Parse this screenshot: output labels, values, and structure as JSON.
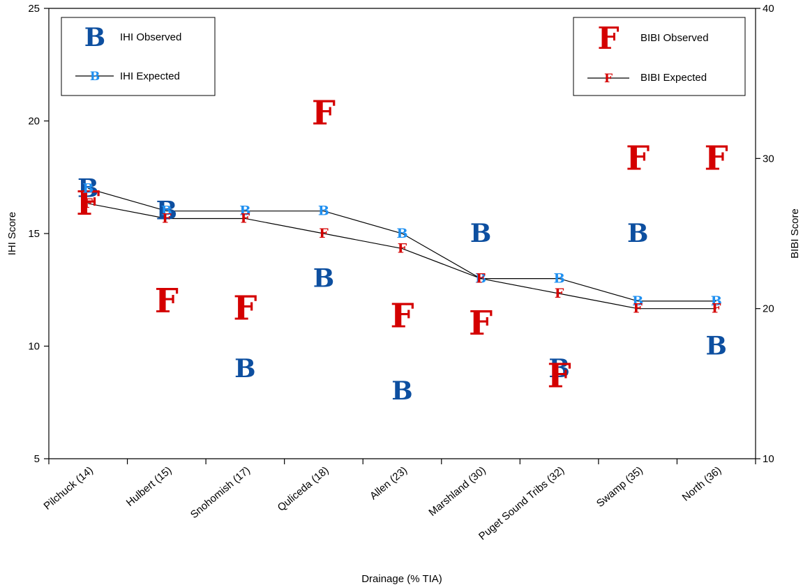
{
  "chart_data": {
    "type": "scatter",
    "categories": [
      "Pilchuck (14)",
      "Hulbert (15)",
      "Snohomish (17)",
      "Quliceda (18)",
      "Allen (23)",
      "Marshland (30)",
      "Puget Sound Tribs (32)",
      "Swamp (35)",
      "North (36)"
    ],
    "xlabel": "Drainage (% TIA)",
    "ylabel_left": "IHI Score",
    "ylabel_right": "BIBI Score",
    "ylim_left": [
      5,
      25
    ],
    "ylim_right": [
      10,
      40
    ],
    "yticks_left": [
      5,
      10,
      15,
      20,
      25
    ],
    "yticks_right": [
      10,
      20,
      30,
      40
    ],
    "grid": false,
    "series": [
      {
        "name": "IHI Observed",
        "axis": "left",
        "marker": "B",
        "style": "observed",
        "color": "#0d4fa0",
        "values": [
          17,
          16,
          9,
          13,
          8,
          15,
          9,
          15,
          10
        ]
      },
      {
        "name": "IHI Expected",
        "axis": "left",
        "marker": "B",
        "style": "expected",
        "color": "#1e8ff0",
        "values": [
          17,
          16,
          16,
          16,
          15,
          13,
          13,
          12,
          12
        ]
      },
      {
        "name": "BIBI Observed",
        "axis": "right",
        "marker": "F",
        "style": "observed",
        "color": "#d40000",
        "values": [
          27,
          20.5,
          20,
          33,
          19.5,
          19,
          15.5,
          30,
          30
        ]
      },
      {
        "name": "BIBI Expected",
        "axis": "right",
        "marker": "F",
        "style": "expected",
        "color": "#d40000",
        "values": [
          27,
          26,
          26,
          25,
          24,
          22,
          21,
          20,
          20
        ]
      }
    ],
    "legends": [
      {
        "position": "top-left",
        "entries": [
          "IHI Observed",
          "IHI Expected"
        ]
      },
      {
        "position": "top-right",
        "entries": [
          "BIBI Observed",
          "BIBI Expected"
        ]
      }
    ]
  }
}
